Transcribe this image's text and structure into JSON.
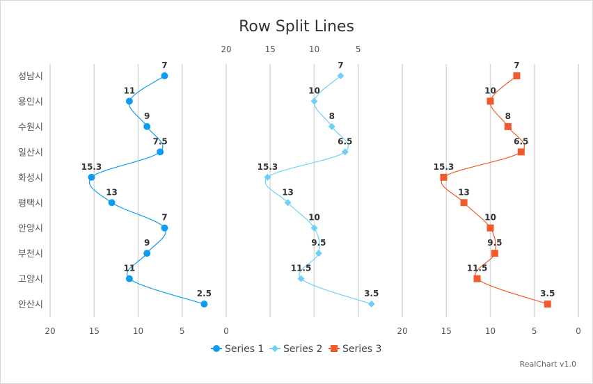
{
  "chart_data": {
    "type": "line",
    "title": "Row Split Lines",
    "categories": [
      "성남시",
      "용인시",
      "수원시",
      "일산시",
      "화성시",
      "평택시",
      "안양시",
      "부천시",
      "고양시",
      "안산시"
    ],
    "series": [
      {
        "name": "Series 1",
        "values": [
          7,
          11,
          9,
          7.5,
          15.3,
          13,
          7,
          9,
          11,
          2.5
        ],
        "color": "#0f9cf0",
        "marker": "circle"
      },
      {
        "name": "Series 2",
        "values": [
          7,
          10,
          8,
          6.5,
          15.3,
          13,
          10,
          9.5,
          11.5,
          3.5
        ],
        "color": "#6fd0f7",
        "marker": "diamond"
      },
      {
        "name": "Series 3",
        "values": [
          7,
          10,
          8,
          6.5,
          15.3,
          13,
          10,
          9.5,
          11.5,
          3.5
        ],
        "color": "#f05a2d",
        "marker": "square"
      }
    ],
    "value_axis": {
      "min": 0,
      "max": 20,
      "ticks": [
        20,
        15,
        10,
        5,
        0
      ],
      "reversed": true
    },
    "value_tick_labels": [
      "20",
      "15",
      "10",
      "5",
      "0"
    ],
    "layout": "row-split (3 panes side by side)",
    "grid": true,
    "legend_position": "bottom"
  },
  "credit": "RealChart v1.0"
}
